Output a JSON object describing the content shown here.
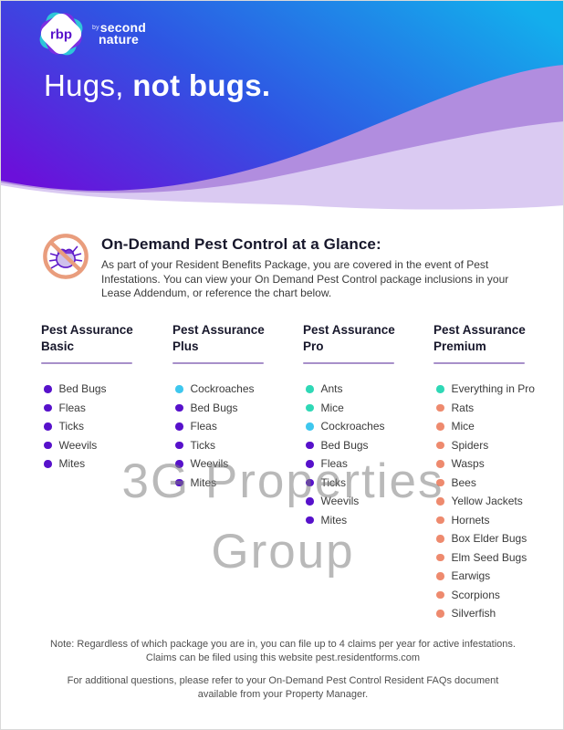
{
  "brand": {
    "logo_text": "rbp",
    "logo_by": "by",
    "logo_name_line1": "second",
    "logo_name_line2": "nature"
  },
  "header": {
    "title_regular": "Hugs, ",
    "title_bold": "not bugs."
  },
  "glance": {
    "icon": "no-bugs-icon",
    "title": "On-Demand Pest Control at a Glance:",
    "body": "As part of your Resident Benefits Package, you are covered in the event of Pest Infestations. You can view your On Demand Pest Control package inclusions in your Lease Addendum, or reference the chart below."
  },
  "colors": {
    "header_gradient_left": "#6b10da",
    "header_gradient_mid": "#2f55e3",
    "header_gradient_right": "#13aeec",
    "wave_medium": "#b18ddf",
    "wave_light": "#dacaf2",
    "underline": "#a78fca",
    "bullet_purple": "#5711cb",
    "bullet_cyan": "#3ec7ee",
    "bullet_teal": "#2fd8b6",
    "bullet_salmon": "#ee8a6e",
    "icon_ring": "#e99d7d"
  },
  "packages": [
    {
      "title_line1": "Pest Assurance",
      "title_line2": "Basic",
      "items": [
        {
          "label": "Bed Bugs",
          "color": "#5711cb"
        },
        {
          "label": "Fleas",
          "color": "#5711cb"
        },
        {
          "label": "Ticks",
          "color": "#5711cb"
        },
        {
          "label": "Weevils",
          "color": "#5711cb"
        },
        {
          "label": "Mites",
          "color": "#5711cb"
        }
      ]
    },
    {
      "title_line1": "Pest Assurance",
      "title_line2": "Plus",
      "items": [
        {
          "label": "Cockroaches",
          "color": "#3ec7ee"
        },
        {
          "label": "Bed Bugs",
          "color": "#5711cb"
        },
        {
          "label": "Fleas",
          "color": "#5711cb"
        },
        {
          "label": "Ticks",
          "color": "#5711cb"
        },
        {
          "label": "Weevils",
          "color": "#5711cb"
        },
        {
          "label": "Mites",
          "color": "#5711cb"
        }
      ]
    },
    {
      "title_line1": "Pest Assurance",
      "title_line2": "Pro",
      "items": [
        {
          "label": "Ants",
          "color": "#2fd8b6"
        },
        {
          "label": "Mice",
          "color": "#2fd8b6"
        },
        {
          "label": "Cockroaches",
          "color": "#3ec7ee"
        },
        {
          "label": "Bed Bugs",
          "color": "#5711cb"
        },
        {
          "label": "Fleas",
          "color": "#5711cb"
        },
        {
          "label": "Ticks",
          "color": "#5711cb"
        },
        {
          "label": "Weevils",
          "color": "#5711cb"
        },
        {
          "label": "Mites",
          "color": "#5711cb"
        }
      ]
    },
    {
      "title_line1": "Pest Assurance",
      "title_line2": "Premium",
      "items": [
        {
          "label": "Everything in Pro",
          "color": "#2fd8b6"
        },
        {
          "label": "Rats",
          "color": "#ee8a6e"
        },
        {
          "label": "Mice",
          "color": "#ee8a6e"
        },
        {
          "label": "Spiders",
          "color": "#ee8a6e"
        },
        {
          "label": "Wasps",
          "color": "#ee8a6e"
        },
        {
          "label": "Bees",
          "color": "#ee8a6e"
        },
        {
          "label": "Yellow Jackets",
          "color": "#ee8a6e"
        },
        {
          "label": "Hornets",
          "color": "#ee8a6e"
        },
        {
          "label": "Box Elder Bugs",
          "color": "#ee8a6e"
        },
        {
          "label": "Elm Seed Bugs",
          "color": "#ee8a6e"
        },
        {
          "label": "Earwigs",
          "color": "#ee8a6e"
        },
        {
          "label": "Scorpions",
          "color": "#ee8a6e"
        },
        {
          "label": "Silverfish",
          "color": "#ee8a6e"
        }
      ]
    }
  ],
  "watermark": {
    "line1": "3G Properties",
    "line2": "Group"
  },
  "footer": {
    "note_line1": "Note: Regardless of which package you are in, you can file up to 4 claims per year for active infestations.",
    "note_line2": "Claims can be filed using this website pest.residentforms.com",
    "faq_line": "For additional questions, please refer to your On-Demand Pest Control Resident FAQs document available from your Property Manager."
  }
}
